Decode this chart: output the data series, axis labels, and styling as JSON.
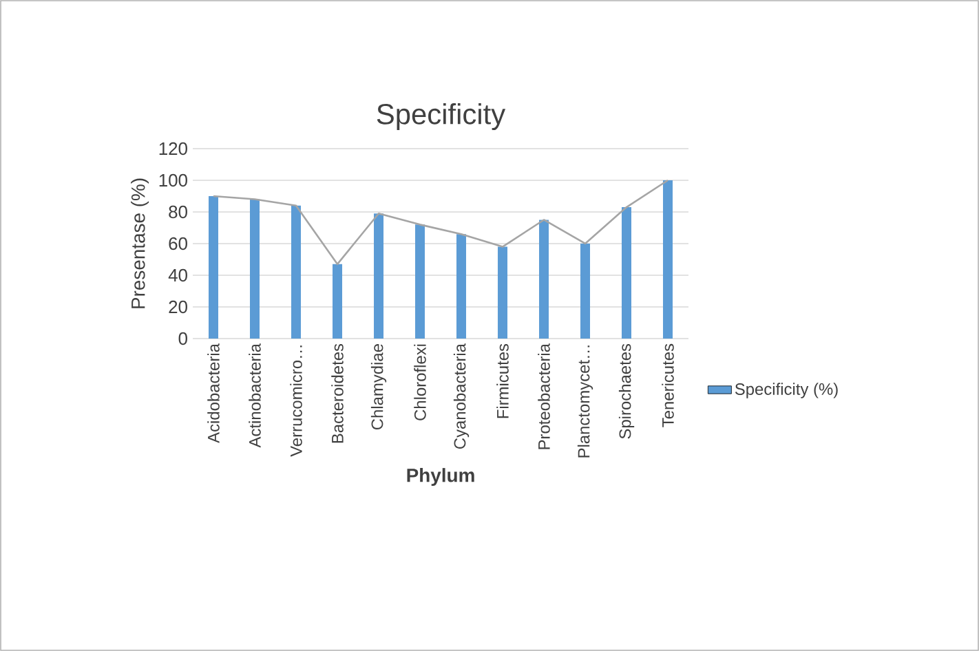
{
  "chart_data": {
    "type": "bar",
    "title": "Specificity",
    "xlabel": "Phylum",
    "ylabel": "Presentase (%)",
    "categories": [
      "Acidobacteria",
      "Actinobacteria",
      "Verrucomicro…",
      "Bacteroidetes",
      "Chlamydiae",
      "Chloroflexi",
      "Cyanobacteria",
      "Firmicutes",
      "Proteobacteria",
      "Planctomycet…",
      "Spirochaetes",
      "Tenericutes"
    ],
    "series": [
      {
        "name": "Specificity (%)",
        "color": "#5b9bd5",
        "values": [
          90,
          88,
          84,
          47,
          79,
          72,
          66,
          58,
          75,
          60,
          83,
          100
        ]
      },
      {
        "type": "line",
        "color": "#a5a5a5",
        "values": [
          90,
          88,
          84,
          47,
          79,
          72,
          66,
          58,
          75,
          60,
          83,
          100
        ]
      }
    ],
    "ylim": [
      0,
      120
    ],
    "yticks": [
      0,
      20,
      40,
      60,
      80,
      100,
      120
    ],
    "grid": "y",
    "legend": "right"
  }
}
